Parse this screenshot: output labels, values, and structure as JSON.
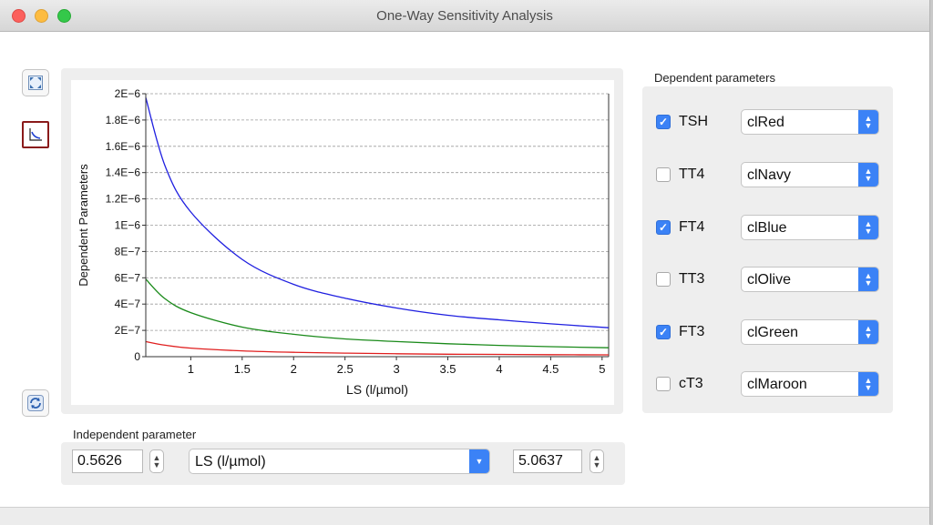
{
  "window": {
    "title": "One-Way Sensitivity Analysis"
  },
  "toolbar": {
    "icons": [
      "fit-screen-icon",
      "chart-icon",
      "refresh-icon"
    ]
  },
  "chart_data": {
    "type": "line",
    "title": "",
    "xlabel": "LS (l/µmol)",
    "ylabel": "Dependent Parameters",
    "xlim": [
      0.5626,
      5.0637
    ],
    "ylim": [
      0,
      2e-06
    ],
    "x_ticks": [
      "1",
      "1.5",
      "2",
      "2.5",
      "3",
      "3.5",
      "4",
      "4.5",
      "5"
    ],
    "y_ticks": [
      "0",
      "2E−7",
      "4E−7",
      "6E−7",
      "8E−7",
      "1E−6",
      "1.2E−6",
      "1.4E−6",
      "1.6E−6",
      "1.8E−6",
      "2E−6"
    ],
    "grid": true,
    "series": [
      {
        "color": "#1f1fe0",
        "x": [
          0.5626,
          0.75,
          1,
          1.5,
          2,
          2.5,
          3,
          3.5,
          4,
          4.5,
          5.0637
        ],
        "y": [
          1.97e-06,
          1.45e-06,
          1.1e-06,
          7.4e-07,
          5.5e-07,
          4.45e-07,
          3.7e-07,
          3.15e-07,
          2.8e-07,
          2.5e-07,
          2.2e-07
        ]
      },
      {
        "color": "#1a8a1a",
        "x": [
          0.5626,
          0.75,
          1,
          1.5,
          2,
          2.5,
          3,
          3.5,
          4,
          4.5,
          5.0637
        ],
        "y": [
          5.9e-07,
          4.4e-07,
          3.35e-07,
          2.25e-07,
          1.7e-07,
          1.35e-07,
          1.15e-07,
          9.8e-08,
          8.6e-08,
          7.6e-08,
          6.8e-08
        ]
      },
      {
        "color": "#e01f1f",
        "x": [
          0.5626,
          0.75,
          1,
          1.5,
          2,
          2.5,
          3,
          3.5,
          4,
          4.5,
          5.0637
        ],
        "y": [
          1.15e-07,
          8.7e-08,
          6.5e-08,
          4.4e-08,
          3.3e-08,
          2.7e-08,
          2.2e-08,
          1.9e-08,
          1.7e-08,
          1.5e-08,
          1.35e-08
        ]
      }
    ]
  },
  "independent": {
    "label": "Independent parameter",
    "min_value": "0.5626",
    "parameter": "LS (l/µmol)",
    "max_value": "5.0637"
  },
  "dependent": {
    "label": "Dependent parameters",
    "items": [
      {
        "name": "TSH",
        "checked": true,
        "color": "clRed"
      },
      {
        "name": "TT4",
        "checked": false,
        "color": "clNavy"
      },
      {
        "name": "FT4",
        "checked": true,
        "color": "clBlue"
      },
      {
        "name": "TT3",
        "checked": false,
        "color": "clOlive"
      },
      {
        "name": "FT3",
        "checked": true,
        "color": "clGreen"
      },
      {
        "name": "cT3",
        "checked": false,
        "color": "clMaroon"
      }
    ]
  }
}
